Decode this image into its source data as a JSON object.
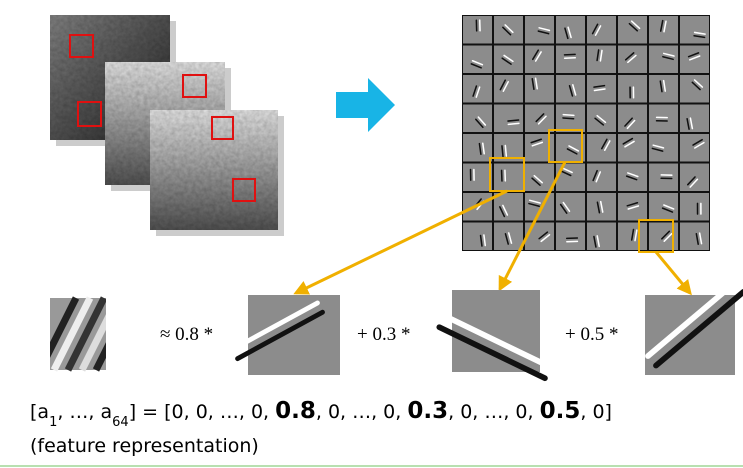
{
  "terms": [
    "≈ 0.8 *",
    "+ 0.3 *",
    "+ 0.5 *"
  ],
  "feature_vector": [
    {
      "text": "[a"
    },
    {
      "text": "1",
      "style": "sub"
    },
    {
      "text": ", …, a"
    },
    {
      "text": "64",
      "style": "sub"
    },
    {
      "text": "] = [0, 0, …, 0, "
    },
    {
      "text": "0.8",
      "style": "bold"
    },
    {
      "text": ", 0, …, 0, "
    },
    {
      "text": "0.3",
      "style": "bold"
    },
    {
      "text": ", 0, …, 0, "
    },
    {
      "text": "0.5",
      "style": "bold"
    },
    {
      "text": ", 0]"
    }
  ],
  "caption": "(feature representation)"
}
